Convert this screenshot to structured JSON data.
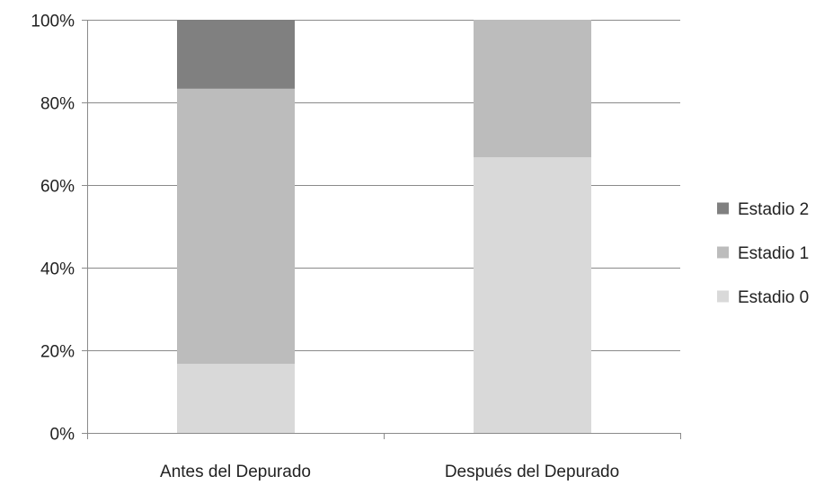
{
  "chart_data": {
    "type": "bar",
    "stacked": true,
    "percent": true,
    "categories": [
      "Antes del Depurado",
      "Después del Depurado"
    ],
    "series": [
      {
        "name": "Estadio 0",
        "values": [
          16.7,
          66.7
        ],
        "color": "#d9d9d9"
      },
      {
        "name": "Estadio 1",
        "values": [
          66.6,
          33.3
        ],
        "color": "#bcbcbc"
      },
      {
        "name": "Estadio 2",
        "values": [
          16.7,
          0
        ],
        "color": "#808080"
      }
    ],
    "ylim": [
      0,
      100
    ],
    "yticks": [
      "0%",
      "20%",
      "40%",
      "60%",
      "80%",
      "100%"
    ],
    "grid": true,
    "legend_position": "right",
    "legend_order": [
      "Estadio 2",
      "Estadio 1",
      "Estadio 0"
    ]
  }
}
